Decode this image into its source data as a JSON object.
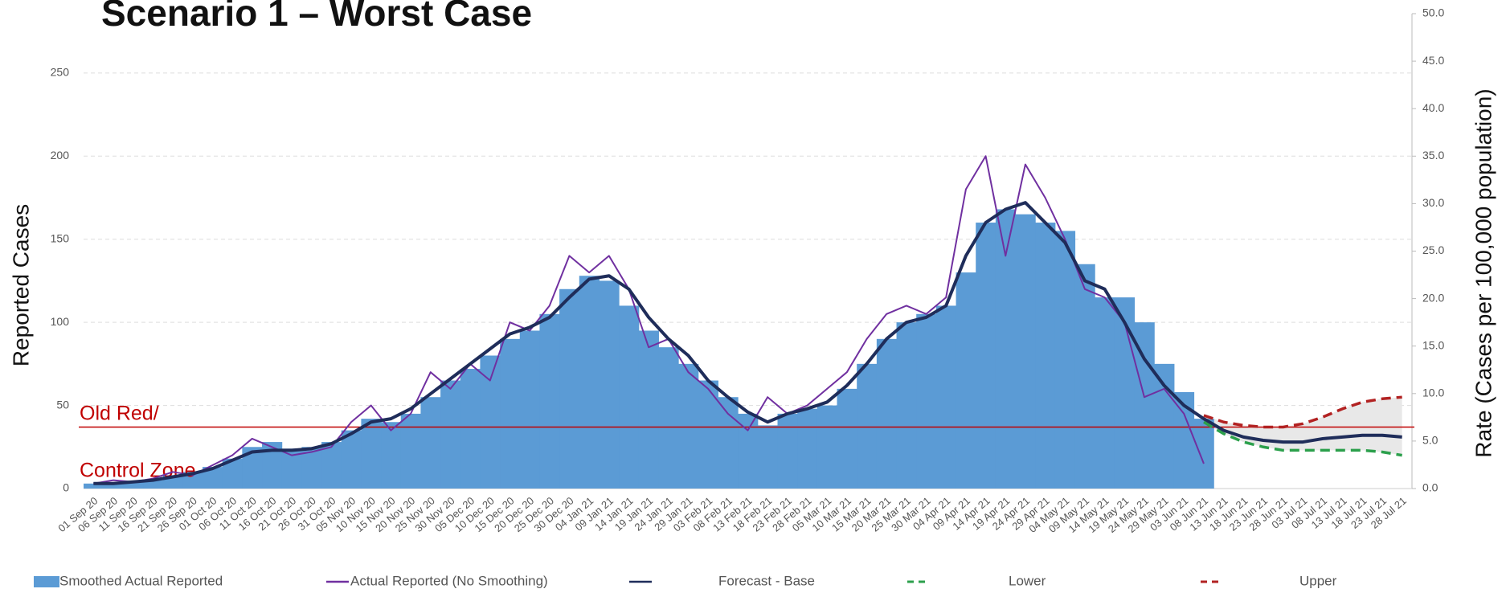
{
  "chart_data": {
    "type": "combo",
    "title": "Scenario 1 – Worst Case",
    "y_label": "Reported Cases",
    "y2_label": "Rate (Cases per 100,000 population)",
    "categories": [
      "01 Sep 20",
      "06 Sep 20",
      "11 Sep 20",
      "16 Sep 20",
      "21 Sep 20",
      "26 Sep 20",
      "01 Oct 20",
      "06 Oct 20",
      "11 Oct 20",
      "16 Oct 20",
      "21 Oct 20",
      "26 Oct 20",
      "31 Oct 20",
      "05 Nov 20",
      "10 Nov 20",
      "15 Nov 20",
      "20 Nov 20",
      "25 Nov 20",
      "30 Nov 20",
      "05 Dec 20",
      "10 Dec 20",
      "15 Dec 20",
      "20 Dec 20",
      "25 Dec 20",
      "30 Dec 20",
      "04 Jan 21",
      "09 Jan 21",
      "14 Jan 21",
      "19 Jan 21",
      "24 Jan 21",
      "29 Jan 21",
      "03 Feb 21",
      "08 Feb 21",
      "13 Feb 21",
      "18 Feb 21",
      "23 Feb 21",
      "28 Feb 21",
      "05 Mar 21",
      "10 Mar 21",
      "15 Mar 21",
      "20 Mar 21",
      "25 Mar 21",
      "30 Mar 21",
      "04 Apr 21",
      "09 Apr 21",
      "14 Apr 21",
      "19 Apr 21",
      "24 Apr 21",
      "29 Apr 21",
      "04 May 21",
      "09 May 21",
      "14 May 21",
      "19 May 21",
      "24 May 21",
      "29 May 21",
      "03 Jun 21",
      "08 Jun 21",
      "13 Jun 21",
      "18 Jun 21",
      "23 Jun 21",
      "28 Jun 21",
      "03 Jul 21",
      "08 Jul 21",
      "13 Jul 21",
      "18 Jul 21",
      "23 Jul 21",
      "28 Jul 21"
    ],
    "series": [
      {
        "name": "Smoothed Actual Reported",
        "type": "bar",
        "color": "#5b9bd5",
        "values": [
          3,
          3,
          4,
          5,
          8,
          10,
          13,
          18,
          25,
          28,
          24,
          25,
          28,
          35,
          42,
          40,
          45,
          55,
          65,
          72,
          80,
          90,
          95,
          105,
          120,
          128,
          125,
          110,
          95,
          85,
          75,
          65,
          55,
          45,
          38,
          45,
          48,
          50,
          60,
          75,
          90,
          100,
          105,
          110,
          130,
          160,
          168,
          165,
          160,
          155,
          135,
          115,
          115,
          100,
          75,
          58,
          42,
          null,
          null,
          null,
          null,
          null,
          null,
          null,
          null,
          null,
          null
        ]
      },
      {
        "name": "Actual Reported (No Smoothing)",
        "type": "line",
        "color": "#7030a0",
        "values": [
          3,
          5,
          4,
          6,
          10,
          8,
          14,
          20,
          30,
          25,
          20,
          22,
          25,
          40,
          50,
          35,
          45,
          70,
          60,
          75,
          65,
          100,
          95,
          110,
          140,
          130,
          140,
          120,
          85,
          90,
          70,
          60,
          45,
          35,
          55,
          45,
          50,
          60,
          70,
          90,
          105,
          110,
          105,
          115,
          180,
          200,
          140,
          195,
          175,
          150,
          120,
          115,
          100,
          55,
          60,
          45,
          15,
          null,
          null,
          null,
          null,
          null,
          null,
          null,
          null,
          null,
          null
        ]
      },
      {
        "name": "Forecast - Base",
        "type": "line",
        "color": "#1f2d5a",
        "values": [
          3,
          3,
          4,
          5,
          7,
          9,
          12,
          17,
          22,
          23,
          23,
          24,
          27,
          33,
          40,
          42,
          48,
          57,
          66,
          75,
          84,
          93,
          97,
          103,
          115,
          126,
          128,
          120,
          103,
          90,
          80,
          65,
          55,
          46,
          40,
          45,
          48,
          52,
          62,
          75,
          90,
          100,
          103,
          110,
          140,
          160,
          168,
          172,
          160,
          148,
          125,
          120,
          100,
          78,
          62,
          50,
          42,
          35,
          31,
          29,
          28,
          28,
          30,
          31,
          32,
          32,
          31
        ]
      },
      {
        "name": "Lower",
        "type": "line",
        "dash": true,
        "color": "#2ca04c",
        "values": [
          null,
          null,
          null,
          null,
          null,
          null,
          null,
          null,
          null,
          null,
          null,
          null,
          null,
          null,
          null,
          null,
          null,
          null,
          null,
          null,
          null,
          null,
          null,
          null,
          null,
          null,
          null,
          null,
          null,
          null,
          null,
          null,
          null,
          null,
          null,
          null,
          null,
          null,
          null,
          null,
          null,
          null,
          null,
          null,
          null,
          null,
          null,
          null,
          null,
          null,
          null,
          null,
          null,
          null,
          null,
          null,
          40,
          33,
          28,
          25,
          23,
          23,
          23,
          23,
          23,
          22,
          20
        ]
      },
      {
        "name": "Upper",
        "type": "line",
        "dash": true,
        "color": "#b22222",
        "values": [
          null,
          null,
          null,
          null,
          null,
          null,
          null,
          null,
          null,
          null,
          null,
          null,
          null,
          null,
          null,
          null,
          null,
          null,
          null,
          null,
          null,
          null,
          null,
          null,
          null,
          null,
          null,
          null,
          null,
          null,
          null,
          null,
          null,
          null,
          null,
          null,
          null,
          null,
          null,
          null,
          null,
          null,
          null,
          null,
          null,
          null,
          null,
          null,
          null,
          null,
          null,
          null,
          null,
          null,
          null,
          null,
          44,
          40,
          38,
          37,
          37,
          39,
          43,
          48,
          52,
          54,
          55
        ]
      }
    ],
    "band_fill": "#e8e8e8",
    "ylim": [
      0,
      285.7
    ],
    "yticks": [
      0,
      50,
      100,
      150,
      200,
      250
    ],
    "y2lim": [
      0,
      50
    ],
    "y2ticks": [
      {
        "value": 0,
        "label": "0.0"
      },
      {
        "value": 5,
        "label": "5.0"
      },
      {
        "value": 10,
        "label": "10.0"
      },
      {
        "value": 15,
        "label": "15.0"
      },
      {
        "value": 20,
        "label": "20.0"
      },
      {
        "value": 25,
        "label": "25.0"
      },
      {
        "value": 30,
        "label": "30.0"
      },
      {
        "value": 35,
        "label": "35.0"
      },
      {
        "value": 40,
        "label": "40.0"
      },
      {
        "value": 45,
        "label": "45.0"
      },
      {
        "value": 50,
        "label": "50.0"
      }
    ],
    "grid": true,
    "reference_line": {
      "value": 37,
      "color": "#c00000",
      "label": [
        "Old Red/",
        "Control Zone"
      ]
    }
  }
}
